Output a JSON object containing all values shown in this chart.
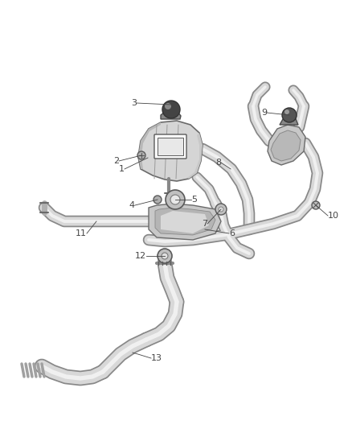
{
  "bg_color": "#ffffff",
  "line_color": "#5a5a5a",
  "label_color": "#444444",
  "shadow_color": "#b0b0b0",
  "figsize": [
    4.38,
    5.33
  ],
  "dpi": 100,
  "tube_lw": 9,
  "tube_edge_lw": 1.2,
  "label_fontsize": 8,
  "leader_lw": 0.6
}
